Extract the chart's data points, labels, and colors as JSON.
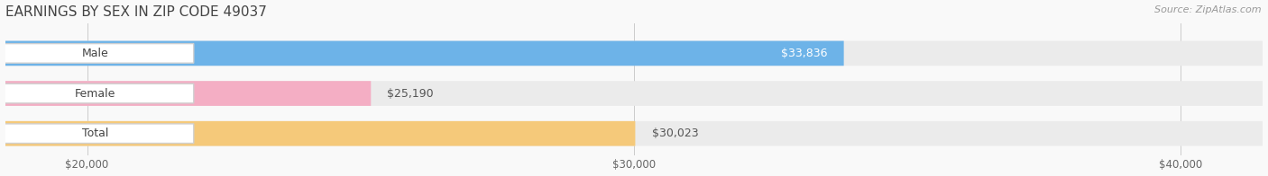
{
  "title": "EARNINGS BY SEX IN ZIP CODE 49037",
  "source": "Source: ZipAtlas.com",
  "categories": [
    "Male",
    "Female",
    "Total"
  ],
  "values": [
    33836,
    25190,
    30023
  ],
  "bar_colors": [
    "#6db3e8",
    "#f4aec4",
    "#f5c97a"
  ],
  "bar_bg_color": "#ebebeb",
  "xmin": 18500,
  "xmax": 41500,
  "xticks": [
    20000,
    30000,
    40000
  ],
  "xtick_labels": [
    "$20,000",
    "$30,000",
    "$40,000"
  ],
  "title_fontsize": 11,
  "tick_fontsize": 8.5,
  "source_fontsize": 8,
  "bar_height": 0.62,
  "background_color": "#f9f9f9",
  "value_labels": [
    "$33,836",
    "$25,190",
    "$30,023"
  ],
  "value_inside": [
    true,
    false,
    false
  ],
  "pill_label_colors": [
    "#555555",
    "#555555",
    "#555555"
  ]
}
